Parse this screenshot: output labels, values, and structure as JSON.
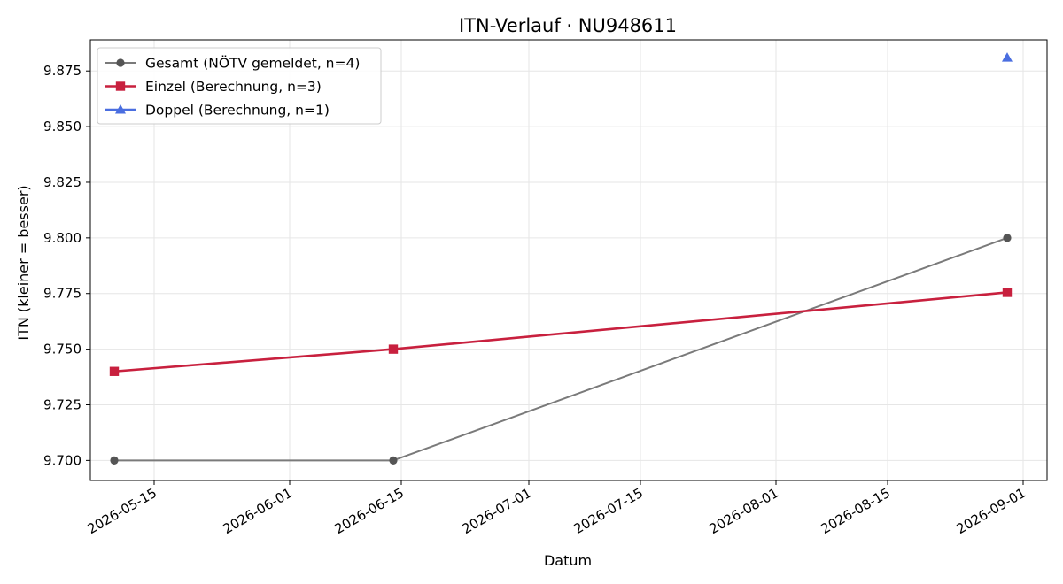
{
  "chart_data": {
    "type": "line",
    "title": "ITN-Verlauf · NU948611",
    "xlabel": "Datum",
    "ylabel": "ITN  (kleiner = besser)",
    "x_type": "date",
    "xlim": [
      "2026-05-07",
      "2026-09-04"
    ],
    "ylim": [
      9.691,
      9.889
    ],
    "x_ticks": [
      "2026-05-15",
      "2026-06-01",
      "2026-06-15",
      "2026-07-01",
      "2026-07-15",
      "2026-08-01",
      "2026-08-15",
      "2026-09-01"
    ],
    "y_ticks": [
      9.7,
      9.725,
      9.75,
      9.775,
      9.8,
      9.825,
      9.85,
      9.875
    ],
    "y_tick_labels": [
      "9.700",
      "9.725",
      "9.750",
      "9.775",
      "9.800",
      "9.825",
      "9.850",
      "9.875"
    ],
    "grid": true,
    "legend_position": "top-left",
    "series": [
      {
        "name": "Gesamt (NÖTV gemeldet, n=4)",
        "color": "#7a7a7a",
        "marker_color": "#555555",
        "marker": "circle",
        "points": [
          {
            "x": "2026-05-10",
            "y": 9.7
          },
          {
            "x": "2026-06-14",
            "y": 9.7
          },
          {
            "x": "2026-08-30",
            "y": 9.8
          }
        ]
      },
      {
        "name": "Einzel (Berechnung, n=3)",
        "color": "#c8203e",
        "marker_color": "#c8203e",
        "marker": "square",
        "points": [
          {
            "x": "2026-05-10",
            "y": 9.74
          },
          {
            "x": "2026-06-14",
            "y": 9.75
          },
          {
            "x": "2026-08-30",
            "y": 9.7755
          }
        ]
      },
      {
        "name": "Doppel (Berechnung, n=1)",
        "color": "#4a6ee0",
        "marker_color": "#4a6ee0",
        "marker": "triangle",
        "points": [
          {
            "x": "2026-08-30",
            "y": 9.881
          }
        ]
      }
    ]
  }
}
